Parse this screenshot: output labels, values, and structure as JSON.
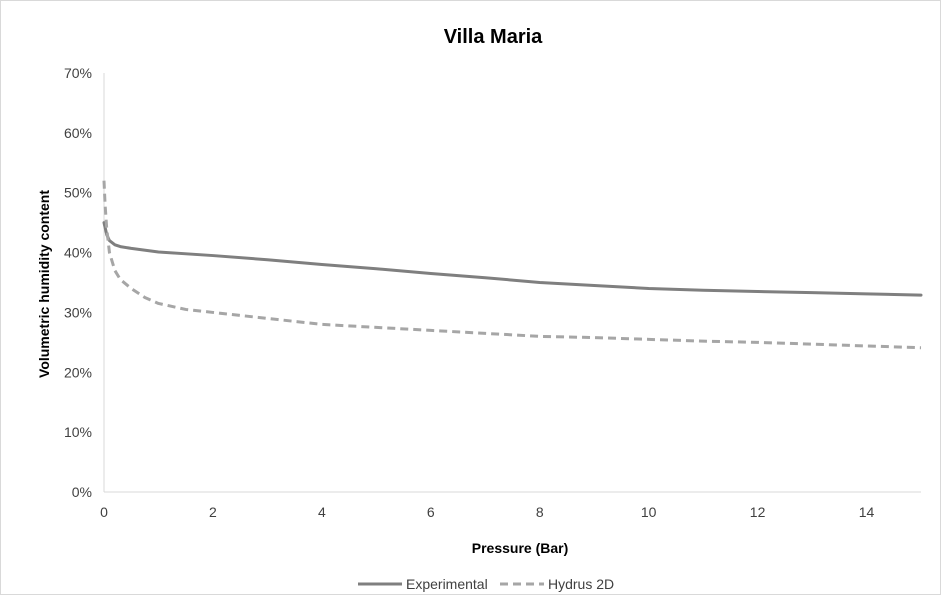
{
  "chart_data": {
    "type": "line",
    "title": "Villa Maria",
    "xlabel": "Pressure (Bar)",
    "ylabel": "Volumetric humidity content",
    "xlim": [
      0,
      15
    ],
    "ylim": [
      0,
      0.7
    ],
    "x_ticks": [
      "0",
      "2",
      "4",
      "6",
      "8",
      "10",
      "12",
      "14"
    ],
    "y_ticks": [
      "0%",
      "10%",
      "20%",
      "30%",
      "40%",
      "50%",
      "60%",
      "70%"
    ],
    "grid": false,
    "legend_position": "bottom",
    "series": [
      {
        "name": "Experimental",
        "color": "#7f7f7f",
        "style": "solid",
        "points": [
          [
            0.0,
            0.45
          ],
          [
            0.05,
            0.43
          ],
          [
            0.1,
            0.42
          ],
          [
            0.2,
            0.413
          ],
          [
            0.3,
            0.41
          ],
          [
            0.5,
            0.407
          ],
          [
            1.0,
            0.401
          ],
          [
            2.0,
            0.395
          ],
          [
            3.0,
            0.388
          ],
          [
            4.0,
            0.38
          ],
          [
            5.0,
            0.373
          ],
          [
            6.0,
            0.365
          ],
          [
            7.0,
            0.358
          ],
          [
            8.0,
            0.35
          ],
          [
            9.0,
            0.345
          ],
          [
            10.0,
            0.34
          ],
          [
            11.0,
            0.337
          ],
          [
            12.0,
            0.335
          ],
          [
            13.0,
            0.333
          ],
          [
            14.0,
            0.331
          ],
          [
            15.0,
            0.329
          ]
        ]
      },
      {
        "name": "Hydrus 2D",
        "color": "#a6a6a6",
        "style": "dashed",
        "points": [
          [
            0.0,
            0.52
          ],
          [
            0.02,
            0.48
          ],
          [
            0.05,
            0.44
          ],
          [
            0.1,
            0.4
          ],
          [
            0.2,
            0.37
          ],
          [
            0.3,
            0.355
          ],
          [
            0.5,
            0.34
          ],
          [
            0.75,
            0.325
          ],
          [
            1.0,
            0.315
          ],
          [
            1.5,
            0.305
          ],
          [
            2.0,
            0.3
          ],
          [
            3.0,
            0.29
          ],
          [
            4.0,
            0.28
          ],
          [
            5.0,
            0.275
          ],
          [
            6.0,
            0.27
          ],
          [
            7.0,
            0.265
          ],
          [
            8.0,
            0.26
          ],
          [
            9.0,
            0.258
          ],
          [
            10.0,
            0.255
          ],
          [
            11.0,
            0.252
          ],
          [
            12.0,
            0.25
          ],
          [
            13.0,
            0.247
          ],
          [
            14.0,
            0.244
          ],
          [
            15.0,
            0.241
          ]
        ]
      }
    ]
  }
}
